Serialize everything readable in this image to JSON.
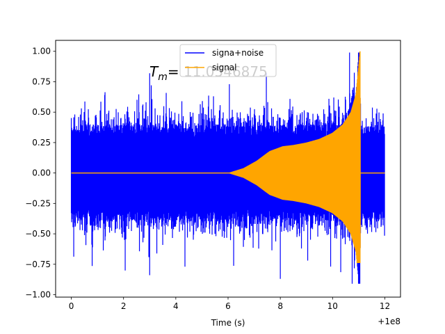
{
  "chart_data": {
    "type": "line",
    "title": "",
    "xlabel": "Time (s)",
    "ylabel": "",
    "x_offset_label": "+1e8",
    "xlim": [
      -0.6,
      12.6
    ],
    "ylim": [
      -1.02,
      1.09
    ],
    "x_ticks": [
      0,
      2,
      4,
      6,
      8,
      10,
      12
    ],
    "x_tick_labels": [
      "0",
      "2",
      "4",
      "6",
      "8",
      "10",
      "12"
    ],
    "y_ticks": [
      -1.0,
      -0.75,
      -0.5,
      -0.25,
      0.0,
      0.25,
      0.5,
      0.75,
      1.0
    ],
    "y_tick_labels": [
      "−1.00",
      "−0.75",
      "−0.50",
      "−0.25",
      "0.00",
      "0.25",
      "0.50",
      "0.75",
      "1.00"
    ],
    "annotation": "T_m= 11.0546875",
    "annotation_main": "T",
    "annotation_sub": "m",
    "annotation_rest": "= 11.0546875",
    "legend_position": "upper center",
    "series": [
      {
        "name": "signa+noise",
        "color": "#0000ff",
        "x_range": [
          0,
          12
        ],
        "noise_envelope_typical": 0.4,
        "max": 0.99,
        "min": -0.91,
        "pattern": "dense noisy oscillation"
      },
      {
        "name": "signal",
        "color": "#ffa500",
        "x_range": [
          0,
          12
        ],
        "envelope": [
          {
            "x": 0,
            "amp": 0.0
          },
          {
            "x": 6.0,
            "amp": 0.0
          },
          {
            "x": 6.6,
            "amp": 0.04
          },
          {
            "x": 7.1,
            "amp": 0.1
          },
          {
            "x": 7.6,
            "amp": 0.18
          },
          {
            "x": 8.1,
            "amp": 0.22
          },
          {
            "x": 8.5,
            "amp": 0.23
          },
          {
            "x": 9.0,
            "amp": 0.25
          },
          {
            "x": 9.5,
            "amp": 0.28
          },
          {
            "x": 10.0,
            "amp": 0.33
          },
          {
            "x": 10.4,
            "amp": 0.4
          },
          {
            "x": 10.7,
            "amp": 0.5
          },
          {
            "x": 10.9,
            "amp": 0.65
          },
          {
            "x": 11.05,
            "amp": 1.0
          },
          {
            "x": 11.07,
            "amp": 0.0
          },
          {
            "x": 12,
            "amp": 0.0
          }
        ],
        "peak": {
          "x": 11.05,
          "y": 1.0
        },
        "trough": {
          "x": 11.05,
          "y": -0.74
        }
      }
    ]
  }
}
